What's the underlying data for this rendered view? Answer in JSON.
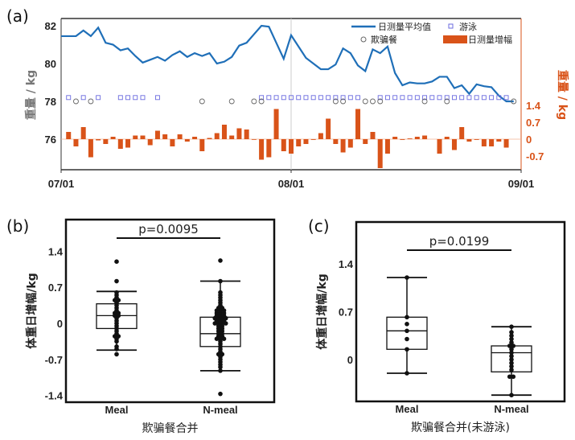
{
  "colors": {
    "line": "#1f6fb8",
    "bar": "#d95319",
    "swim": "#6b6bdf",
    "cheat": "#666666"
  },
  "chart_data": [
    {
      "panel": "(a)",
      "type": "line+bar",
      "x_ticks": [
        "07/01",
        "08/01",
        "09/01"
      ],
      "ylabel_left": "重量 / kg",
      "ylabel_right": "重量 / kg",
      "y_ticks_left": [
        "82",
        "80",
        "78",
        "76"
      ],
      "y_ticks_left_values": [
        82,
        80,
        78,
        76
      ],
      "y_ticks_right": [
        "1.4",
        "0.7",
        "0",
        "-0.7"
      ],
      "y_ticks_right_values": [
        1.4,
        0.7,
        0,
        -0.7
      ],
      "legend": {
        "line": "日测量平均值",
        "swim": "游泳",
        "cheat": "欺骗餐",
        "bar": "日测量增幅",
        "placement": "top-right"
      },
      "days_total": 62,
      "weight": [
        81.45,
        81.45,
        81.45,
        81.75,
        81.45,
        81.9,
        81.1,
        81.0,
        80.7,
        80.8,
        80.4,
        80.05,
        80.2,
        80.35,
        80.15,
        80.45,
        80.65,
        80.35,
        80.55,
        80.4,
        80.55,
        80.0,
        80.1,
        80.35,
        80.95,
        81.1,
        81.55,
        82.0,
        81.95,
        81.1,
        80.25,
        81.5,
        80.9,
        80.3,
        80.0,
        79.7,
        79.7,
        79.95,
        80.8,
        80.55,
        79.9,
        79.6,
        80.75,
        80.55,
        80.9,
        79.5,
        78.85,
        79.0,
        78.95,
        78.95,
        79.05,
        79.3,
        79.3,
        78.7,
        78.85,
        78.4,
        78.9,
        78.8,
        78.75,
        78.3,
        78.0,
        78.0
      ],
      "increment": [
        0,
        0.3,
        -0.3,
        0.5,
        -0.75,
        -0.05,
        -0.2,
        0.1,
        -0.4,
        -0.35,
        0.15,
        0.15,
        -0.25,
        0.35,
        0.2,
        -0.3,
        0.2,
        -0.1,
        0.1,
        -0.5,
        0.05,
        0.25,
        0.6,
        0.15,
        0.45,
        0.4,
        -0.01,
        -0.85,
        -0.75,
        1.25,
        -0.5,
        -0.6,
        -0.3,
        -0.2,
        -0.03,
        0.25,
        0.85,
        -0.2,
        -0.55,
        -0.35,
        1.25,
        -0.2,
        0.3,
        -1.2,
        -0.6,
        0.1,
        -0.03,
        0.03,
        0.1,
        0.15,
        0.0,
        -0.6,
        0.1,
        -0.45,
        0.5,
        -0.1,
        -0.03,
        -0.3,
        -0.3,
        -0.1,
        -0.35
      ],
      "swim_days": [
        1,
        3,
        5,
        8,
        9,
        10,
        11,
        13,
        27,
        28,
        29,
        30,
        31,
        32,
        33,
        34,
        35,
        36,
        37,
        38,
        39,
        40,
        43,
        44,
        45,
        46,
        47,
        48,
        49,
        50,
        51,
        52,
        53,
        54,
        55,
        56,
        57,
        58,
        59,
        60
      ],
      "cheat_days": [
        2,
        4,
        19,
        23,
        26,
        27,
        37,
        38,
        41,
        42,
        43,
        49,
        52,
        61
      ],
      "swim_marker_value": 78.2,
      "cheat_marker_value": 78.0
    },
    {
      "panel": "(b)",
      "type": "box",
      "categories": [
        "Meal",
        "N-meal"
      ],
      "xlabel": "欺骗餐合并",
      "ylabel": "体重日增幅/kg",
      "y_ticks": [
        "1.4",
        "0.7",
        "0",
        "-0.7",
        "-1.4"
      ],
      "y_ticks_values": [
        1.4,
        0.7,
        0,
        -0.7,
        -1.4
      ],
      "p_label": "p=0.0095",
      "boxes": [
        {
          "whisker_high": 0.62,
          "q3": 0.38,
          "median": 0.15,
          "q1": -0.1,
          "whisker_low": -0.52,
          "points": [
            1.2,
            0.82,
            0.6,
            0.55,
            0.5,
            0.45,
            0.45,
            0.4,
            0.35,
            0.3,
            0.25,
            0.2,
            0.2,
            0.15,
            0.15,
            0.1,
            0.05,
            0.0,
            -0.05,
            -0.1,
            -0.15,
            -0.2,
            -0.25,
            -0.25,
            -0.3,
            -0.35,
            -0.45,
            -0.5,
            -0.6
          ]
        },
        {
          "whisker_high": 0.82,
          "q3": 0.12,
          "median": -0.2,
          "q1": -0.45,
          "whisker_low": -0.92,
          "points": [
            1.22,
            0.82,
            0.6,
            0.55,
            0.5,
            0.45,
            0.4,
            0.35,
            0.3,
            0.3,
            0.25,
            0.25,
            0.25,
            0.2,
            0.2,
            0.2,
            0.15,
            0.15,
            0.15,
            0.1,
            0.1,
            0.1,
            0.1,
            0.05,
            0.05,
            0.05,
            0,
            0,
            0,
            0,
            -0.05,
            -0.05,
            -0.1,
            -0.1,
            -0.15,
            -0.15,
            -0.2,
            -0.2,
            -0.25,
            -0.25,
            -0.3,
            -0.3,
            -0.3,
            -0.35,
            -0.4,
            -0.45,
            -0.5,
            -0.55,
            -0.6,
            -0.6,
            -0.65,
            -0.7,
            -0.75,
            -0.8,
            -0.85,
            -0.92,
            -1.37
          ]
        }
      ]
    },
    {
      "panel": "(c)",
      "type": "box",
      "categories": [
        "Meal",
        "N-meal"
      ],
      "xlabel": "欺骗餐合并(未游泳)",
      "ylabel": "体重日增幅/kg",
      "y_ticks": [
        "1.4",
        "0.7",
        "0"
      ],
      "y_ticks_values": [
        1.4,
        0.7,
        0
      ],
      "p_label": "p=0.0199",
      "boxes": [
        {
          "whisker_high": 1.2,
          "q3": 0.62,
          "median": 0.42,
          "q1": 0.15,
          "whisker_low": -0.2,
          "points": [
            1.2,
            0.62,
            0.52,
            0.42,
            0.3,
            0.15,
            -0.2
          ]
        },
        {
          "whisker_high": 0.48,
          "q3": 0.2,
          "median": 0.1,
          "q1": -0.18,
          "whisker_low": -0.52,
          "points": [
            0.48,
            0.4,
            0.35,
            0.3,
            0.25,
            0.2,
            0.2,
            0.15,
            0.1,
            0.05,
            0,
            -0.05,
            -0.1,
            -0.15,
            -0.25,
            -0.25,
            -0.52
          ]
        }
      ]
    }
  ]
}
